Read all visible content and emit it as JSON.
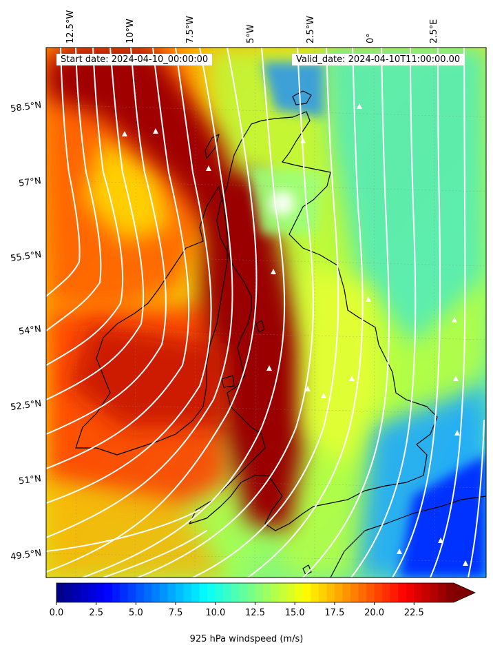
{
  "header": {
    "start_date": "Start date: 2024-04-10_00:00:00",
    "valid_date": "Valid_date: 2024-04-10T11:00:00.00"
  },
  "longitude_labels": [
    "12.5°W",
    "10°W",
    "7.5°W",
    "5°W",
    "2.5°W",
    "0°",
    "2.5°E"
  ],
  "latitude_labels": [
    "58.5°N",
    "57°N",
    "55.5°N",
    "54°N",
    "52.5°N",
    "51°N",
    "49.5°N"
  ],
  "colorbar": {
    "label": "925 hPa windspeed (m/s)",
    "ticks": [
      "0.0",
      "2.5",
      "5.0",
      "7.5",
      "10.0",
      "12.5",
      "15.0",
      "17.5",
      "20.0",
      "22.5"
    ],
    "min": 0,
    "max": 25,
    "colormap": "jet",
    "extend": "max"
  },
  "colors": {
    "coastline": "#000000",
    "streamlines": "#ffffff",
    "low": "#00007f",
    "high": "#7f0000"
  }
}
